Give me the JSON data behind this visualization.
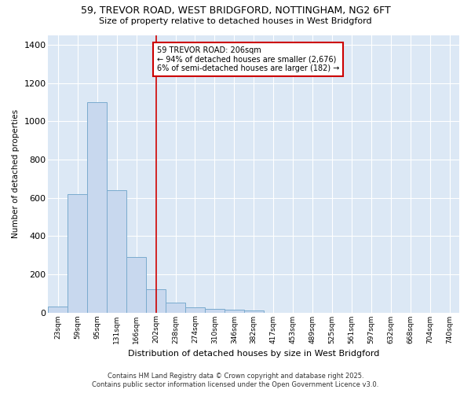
{
  "title_line1": "59, TREVOR ROAD, WEST BRIDGFORD, NOTTINGHAM, NG2 6FT",
  "title_line2": "Size of property relative to detached houses in West Bridgford",
  "xlabel": "Distribution of detached houses by size in West Bridgford",
  "ylabel": "Number of detached properties",
  "bin_labels": [
    "23sqm",
    "59sqm",
    "95sqm",
    "131sqm",
    "166sqm",
    "202sqm",
    "238sqm",
    "274sqm",
    "310sqm",
    "346sqm",
    "382sqm",
    "417sqm",
    "453sqm",
    "489sqm",
    "525sqm",
    "561sqm",
    "597sqm",
    "632sqm",
    "668sqm",
    "704sqm",
    "740sqm"
  ],
  "bar_values": [
    30,
    620,
    1100,
    640,
    290,
    120,
    50,
    25,
    20,
    15,
    10,
    0,
    0,
    0,
    0,
    0,
    0,
    0,
    0,
    0,
    0
  ],
  "bar_color": "#c8d8ee",
  "bar_edge_color": "#7aabce",
  "vline_x": 5,
  "vline_color": "#cc0000",
  "annotation_text": "59 TREVOR ROAD: 206sqm\n← 94% of detached houses are smaller (2,676)\n6% of semi-detached houses are larger (182) →",
  "annotation_box_color": "#ffffff",
  "annotation_box_edge_color": "#cc0000",
  "ylim": [
    0,
    1450
  ],
  "yticks": [
    0,
    200,
    400,
    600,
    800,
    1000,
    1200,
    1400
  ],
  "background_color": "#dce8f5",
  "grid_color": "#ffffff",
  "footer_line1": "Contains HM Land Registry data © Crown copyright and database right 2025.",
  "footer_line2": "Contains public sector information licensed under the Open Government Licence v3.0."
}
